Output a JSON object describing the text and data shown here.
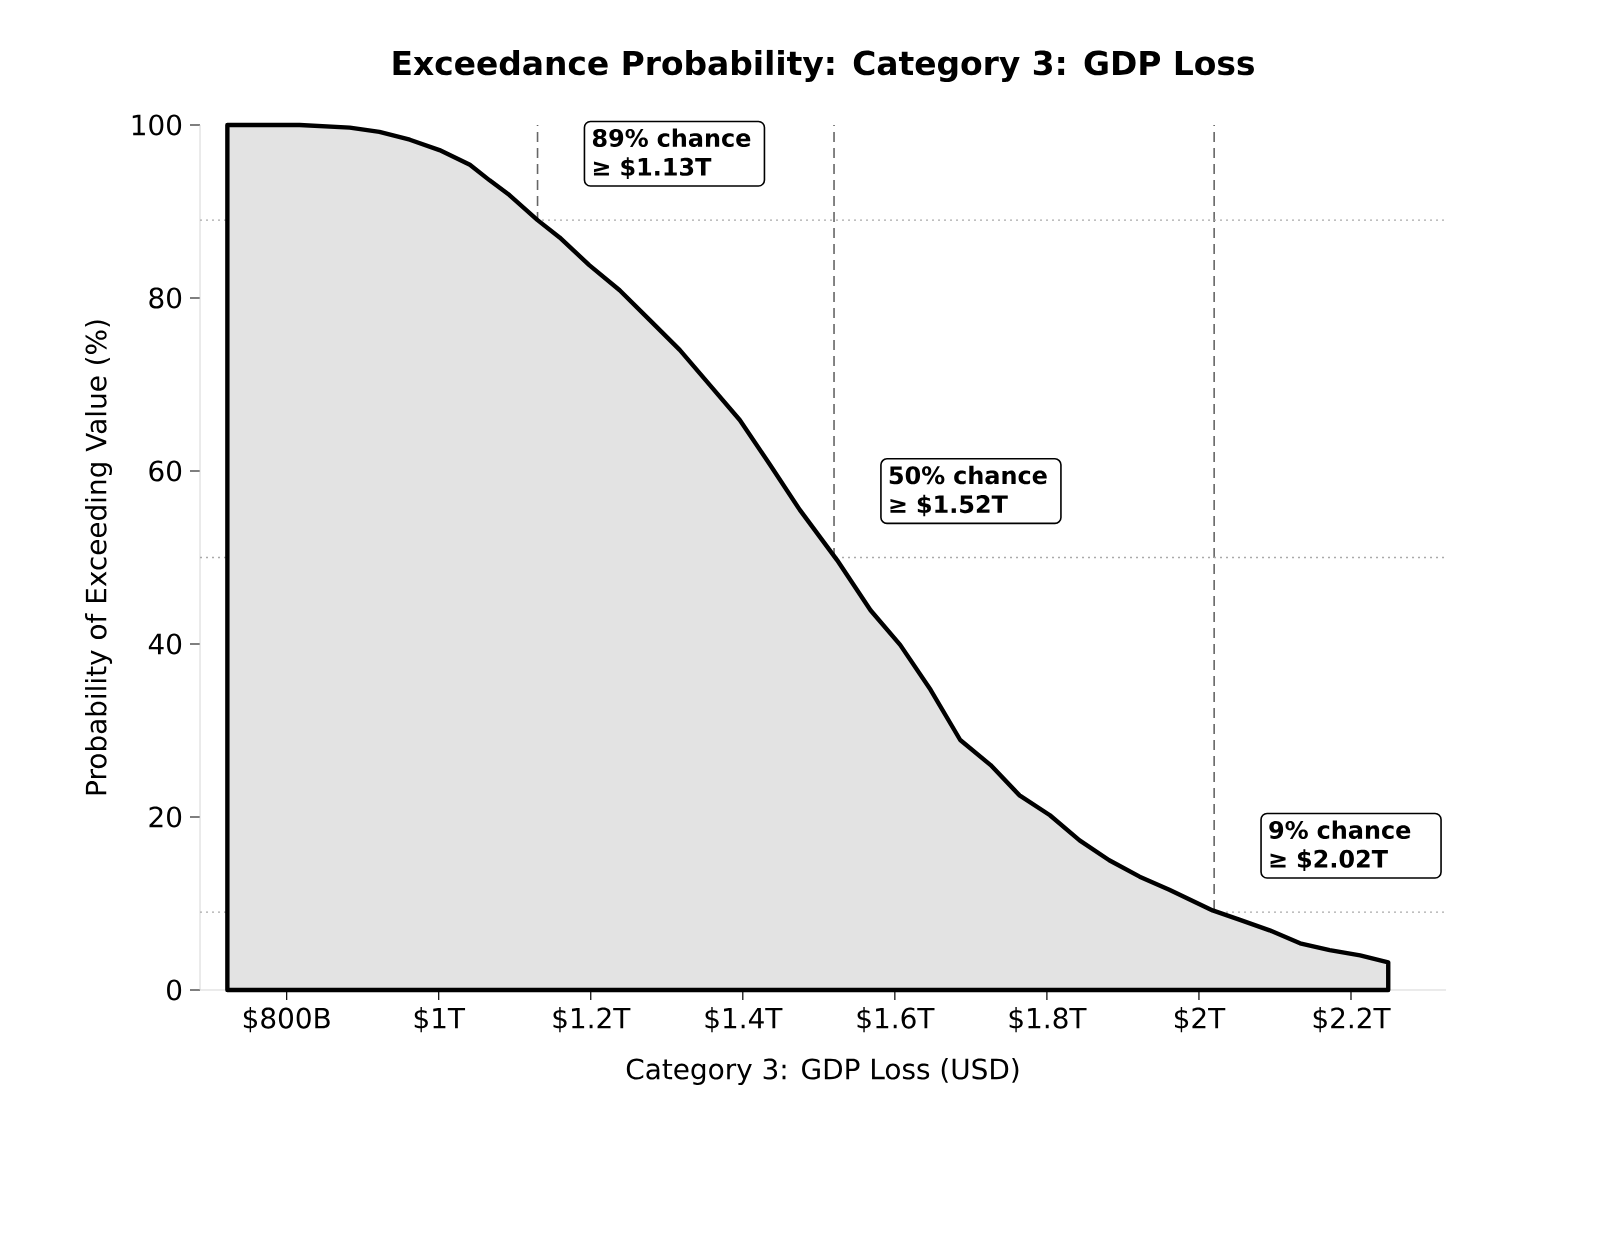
{
  "chart_data": {
    "type": "area",
    "title": "Exceedance Probability: Category 3: GDP Loss",
    "xlabel": "Category 3: GDP Loss (USD)",
    "ylabel": "Probability of Exceeding Value (%)",
    "xlim": [
      686000000000,
      2325000000000
    ],
    "ylim": [
      0,
      100
    ],
    "xticks": [
      {
        "value": 800000000000,
        "label": "$800B"
      },
      {
        "value": 1000000000000,
        "label": "$1T"
      },
      {
        "value": 1200000000000,
        "label": "$1.2T"
      },
      {
        "value": 1400000000000,
        "label": "$1.4T"
      },
      {
        "value": 1600000000000,
        "label": "$1.6T"
      },
      {
        "value": 1800000000000,
        "label": "$1.8T"
      },
      {
        "value": 2000000000000,
        "label": "$2T"
      },
      {
        "value": 2200000000000,
        "label": "$2.2T"
      }
    ],
    "yticks": [
      0,
      20,
      40,
      60,
      80,
      100
    ],
    "series": [
      {
        "color": "#000000",
        "x": [
          722000000000,
          817000000000,
          883000000000,
          922000000000,
          962000000000,
          1001000000000,
          1041000000000,
          1067000000000,
          1093000000000,
          1130000000000,
          1159000000000,
          1198000000000,
          1238000000000,
          1277000000000,
          1317000000000,
          1357000000000,
          1396000000000,
          1436000000000,
          1475000000000,
          1524000000000,
          1568000000000,
          1607000000000,
          1647000000000,
          1686000000000,
          1726000000000,
          1764000000000,
          1804000000000,
          1843000000000,
          1882000000000,
          1922000000000,
          1961000000000,
          2018000000000,
          2054000000000,
          2093000000000,
          2133000000000,
          2172000000000,
          2212000000000,
          2249000000000,
          2249000000000
        ],
        "values": [
          100,
          100,
          99.7,
          99.2,
          98.3,
          97.1,
          95.4,
          93.6,
          91.9,
          89,
          87,
          83.8,
          80.9,
          77.5,
          74,
          69.9,
          65.9,
          60.7,
          55.5,
          49.7,
          43.9,
          39.9,
          34.7,
          28.9,
          26,
          22.5,
          20.2,
          17.3,
          15,
          13.1,
          11.6,
          9.2,
          8.1,
          6.9,
          5.4,
          4.6,
          4.0,
          3.2,
          0
        ]
      }
    ],
    "ref_lines": [
      {
        "axis": "x",
        "value": 1130000000000,
        "color": "#666666",
        "line_style": "dashed"
      },
      {
        "axis": "x",
        "value": 1520000000000,
        "color": "#666666",
        "line_style": "dashed"
      },
      {
        "axis": "x",
        "value": 2020000000000,
        "color": "#666666",
        "line_style": "dashed"
      },
      {
        "axis": "y",
        "value": 89,
        "color": "#aaaaaa",
        "line_style": "dotted"
      },
      {
        "axis": "y",
        "value": 50,
        "color": "#aaaaaa",
        "line_style": "dotted"
      },
      {
        "axis": "y",
        "value": 9,
        "color": "#aaaaaa",
        "line_style": "dotted"
      }
    ],
    "annotations": [
      {
        "text": "89% chance ≥ $1.13T",
        "x": 1130000000000,
        "y": 89
      },
      {
        "text": "50% chance ≥ $1.52T",
        "x": 1520000000000,
        "y": 50
      },
      {
        "text": "9% chance ≥ $2.02T",
        "x": 2020000000000,
        "y": 9
      }
    ]
  }
}
